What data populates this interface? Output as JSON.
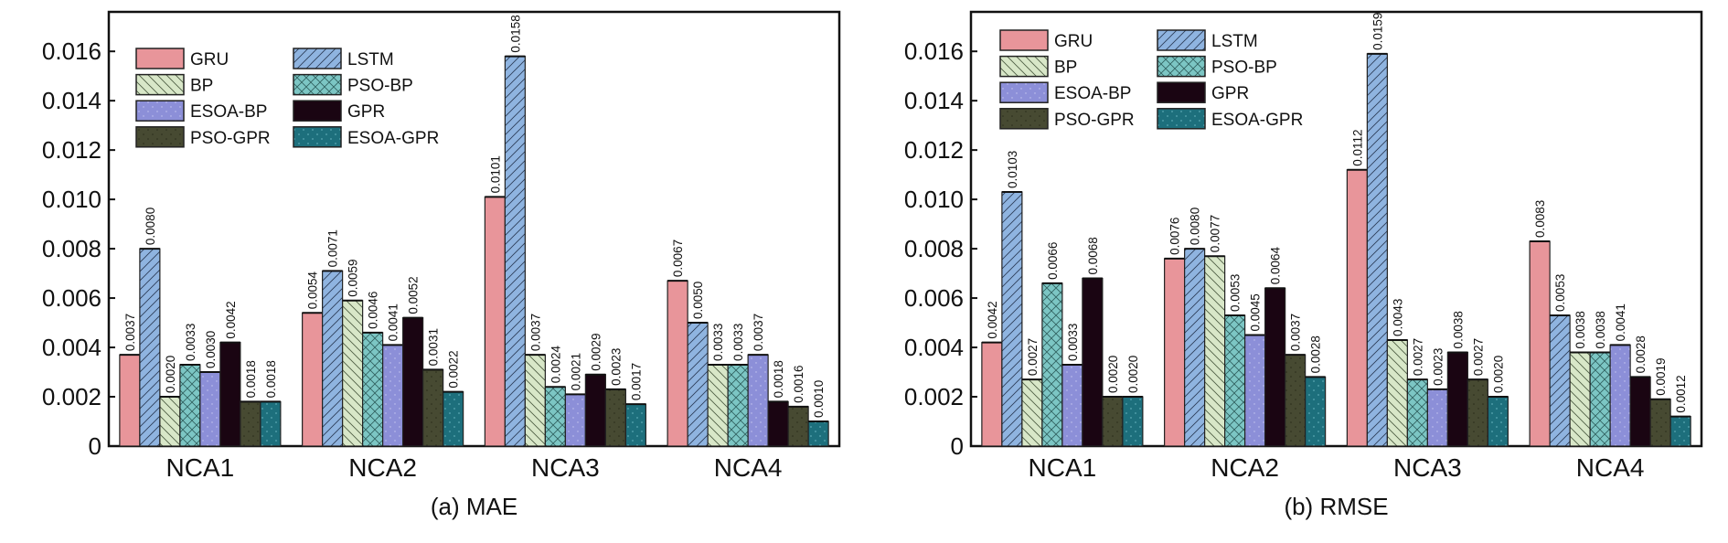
{
  "series_colors": {
    "GRU": "#e8959a",
    "LSTM": "#8fb4e0",
    "BP": "#d8e7c8",
    "PSO-BP": "#7cc6c4",
    "ESOA-BP": "#8c8fd8",
    "GPR": "#1a0512",
    "PSO-GPR": "#474a32",
    "ESOA-GPR": "#1d6f7c"
  },
  "chart_data": [
    {
      "type": "bar",
      "title": "(a) MAE",
      "xlabel": "",
      "ylabel": "",
      "categories": [
        "NCA1",
        "NCA2",
        "NCA3",
        "NCA4"
      ],
      "ylim": [
        0,
        0.0176
      ],
      "yticks": [
        "0",
        "0.002",
        "0.004",
        "0.006",
        "0.008",
        "0.010",
        "0.012",
        "0.014",
        "0.016"
      ],
      "legend_position": "top-left",
      "series": [
        {
          "name": "GRU",
          "values": [
            0.0037,
            0.0054,
            0.0101,
            0.0067
          ],
          "labels": [
            "0.0037",
            "0.0054",
            "0.0101",
            "0.0067"
          ]
        },
        {
          "name": "LSTM",
          "values": [
            0.008,
            0.0071,
            0.0158,
            0.005
          ],
          "labels": [
            "0.0080",
            "0.0071",
            "0.0158",
            "0.0050"
          ]
        },
        {
          "name": "BP",
          "values": [
            0.002,
            0.0059,
            0.0037,
            0.0033
          ],
          "labels": [
            "0.0020",
            "0.0059",
            "0.0037",
            "0.0033"
          ]
        },
        {
          "name": "PSO-BP",
          "values": [
            0.0033,
            0.0046,
            0.0024,
            0.0033
          ],
          "labels": [
            "0.0033",
            "0.0046",
            "0.0024",
            "0.0033"
          ]
        },
        {
          "name": "ESOA-BP",
          "values": [
            0.003,
            0.0041,
            0.0021,
            0.0037
          ],
          "labels": [
            "0.0030",
            "0.0041",
            "0.0021",
            "0.0037"
          ]
        },
        {
          "name": "GPR",
          "values": [
            0.0042,
            0.0052,
            0.0029,
            0.0018
          ],
          "labels": [
            "0.0042",
            "0.0052",
            "0.0029",
            "0.0018"
          ]
        },
        {
          "name": "PSO-GPR",
          "values": [
            0.0018,
            0.0031,
            0.0023,
            0.0016
          ],
          "labels": [
            "0.0018",
            "0.0031",
            "0.0023",
            "0.0016"
          ]
        },
        {
          "name": "ESOA-GPR",
          "values": [
            0.0018,
            0.0022,
            0.0017,
            0.001
          ],
          "labels": [
            "0.0018",
            "0.0022",
            "0.0017",
            "0.0010"
          ]
        }
      ]
    },
    {
      "type": "bar",
      "title": "(b) RMSE",
      "xlabel": "",
      "ylabel": "",
      "categories": [
        "NCA1",
        "NCA2",
        "NCA3",
        "NCA4"
      ],
      "ylim": [
        0,
        0.0176
      ],
      "yticks": [
        "0",
        "0.002",
        "0.004",
        "0.006",
        "0.008",
        "0.010",
        "0.012",
        "0.014",
        "0.016"
      ],
      "legend_position": "top-left",
      "series": [
        {
          "name": "GRU",
          "values": [
            0.0042,
            0.0076,
            0.0112,
            0.0083
          ],
          "labels": [
            "0.0042",
            "0.0076",
            "0.0112",
            "0.0083"
          ]
        },
        {
          "name": "LSTM",
          "values": [
            0.0103,
            0.008,
            0.0159,
            0.0053
          ],
          "labels": [
            "0.0103",
            "0.0080",
            "0.0159",
            "0.0053"
          ]
        },
        {
          "name": "BP",
          "values": [
            0.0027,
            0.0077,
            0.0043,
            0.0038
          ],
          "labels": [
            "0.0027",
            "0.0077",
            "0.0043",
            "0.0038"
          ]
        },
        {
          "name": "PSO-BP",
          "values": [
            0.0066,
            0.0053,
            0.0027,
            0.0038
          ],
          "labels": [
            "0.0066",
            "0.0053",
            "0.0027",
            "0.0038"
          ]
        },
        {
          "name": "ESOA-BP",
          "values": [
            0.0033,
            0.0045,
            0.0023,
            0.0041
          ],
          "labels": [
            "0.0033",
            "0.0045",
            "0.0023",
            "0.0041"
          ]
        },
        {
          "name": "GPR",
          "values": [
            0.0068,
            0.0064,
            0.0038,
            0.0028
          ],
          "labels": [
            "0.0068",
            "0.0064",
            "0.0038",
            "0.0028"
          ]
        },
        {
          "name": "PSO-GPR",
          "values": [
            0.002,
            0.0037,
            0.0027,
            0.0019
          ],
          "labels": [
            "0.0020",
            "0.0037",
            "0.0027",
            "0.0019"
          ]
        },
        {
          "name": "ESOA-GPR",
          "values": [
            0.002,
            0.0028,
            0.002,
            0.0012
          ],
          "labels": [
            "0.0020",
            "0.0028",
            "0.0020",
            "0.0012"
          ]
        }
      ]
    }
  ]
}
